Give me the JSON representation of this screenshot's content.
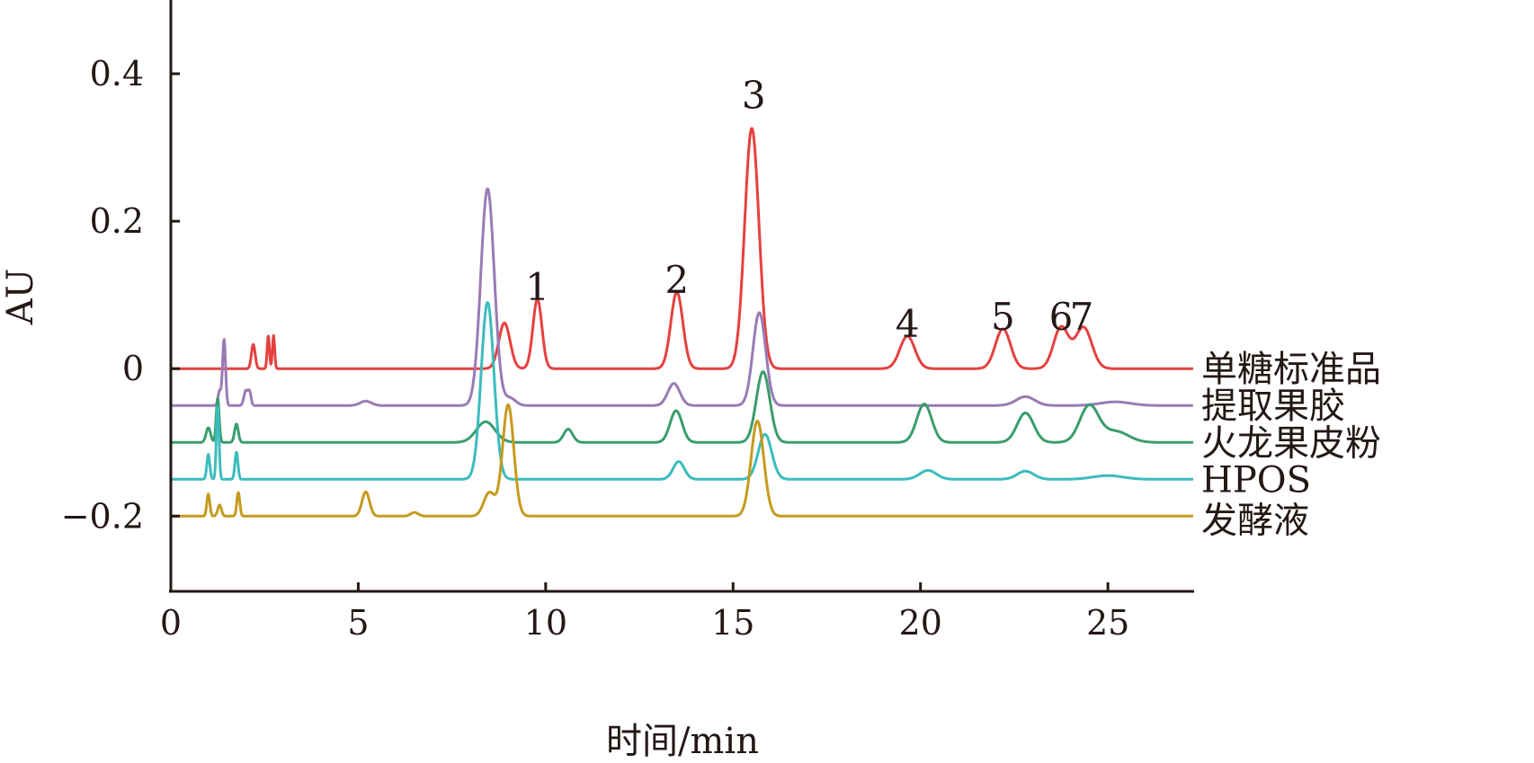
{
  "chart_data": {
    "type": "line",
    "title": "",
    "xlabel": "时间/min",
    "ylabel": "AU",
    "xlim": [
      0,
      27.3
    ],
    "ylim": [
      -0.302,
      0.5
    ],
    "xticks": [
      0,
      5,
      10,
      15,
      20,
      25
    ],
    "xtick_labels": [
      "0",
      "5",
      "10",
      "15",
      "20",
      "25"
    ],
    "yticks": [
      0.4,
      0.2,
      0,
      -0.2
    ],
    "ytick_labels": [
      "0.4",
      "0.2",
      "0",
      "−0.2"
    ],
    "grid": false,
    "legend_placement": "right, inline labels at trace ends",
    "series": [
      {
        "name": "单糖标准品",
        "color": "#e5413f",
        "baseline": 0,
        "peaks": [
          [
            2.2,
            0.033,
            0.05
          ],
          [
            2.6,
            0.045,
            0.03
          ],
          [
            2.74,
            0.045,
            0.03
          ],
          [
            8.9,
            0.062,
            0.15
          ],
          [
            9.78,
            0.094,
            0.12
          ],
          [
            13.5,
            0.104,
            0.16
          ],
          [
            15.5,
            0.326,
            0.19
          ],
          [
            19.65,
            0.044,
            0.2
          ],
          [
            22.2,
            0.054,
            0.2
          ],
          [
            23.75,
            0.056,
            0.2
          ],
          [
            24.35,
            0.056,
            0.22
          ]
        ]
      },
      {
        "name": "提取果胶",
        "color": "#9a7ab6",
        "baseline": -0.05,
        "peaks": [
          [
            1.3,
            0.02,
            0.04
          ],
          [
            1.42,
            0.09,
            0.04
          ],
          [
            2.0,
            0.02,
            0.05
          ],
          [
            2.1,
            0.018,
            0.04
          ],
          [
            5.2,
            0.006,
            0.15
          ],
          [
            8.45,
            0.294,
            0.18
          ],
          [
            9.05,
            0.01,
            0.15
          ],
          [
            13.42,
            0.03,
            0.16
          ],
          [
            15.7,
            0.126,
            0.17
          ],
          [
            22.8,
            0.012,
            0.25
          ],
          [
            25.2,
            0.005,
            0.4
          ]
        ]
      },
      {
        "name": "火龙果皮粉",
        "color": "#3a9d6c",
        "baseline": -0.1,
        "peaks": [
          [
            1.0,
            0.02,
            0.06
          ],
          [
            1.25,
            0.06,
            0.04
          ],
          [
            1.75,
            0.025,
            0.05
          ],
          [
            8.4,
            0.028,
            0.25
          ],
          [
            10.6,
            0.018,
            0.12
          ],
          [
            13.48,
            0.043,
            0.16
          ],
          [
            15.8,
            0.096,
            0.18
          ],
          [
            20.1,
            0.052,
            0.2
          ],
          [
            22.8,
            0.04,
            0.22
          ],
          [
            24.5,
            0.049,
            0.25
          ],
          [
            25.2,
            0.015,
            0.35
          ]
        ]
      },
      {
        "name": "HPOS",
        "color": "#3cbcbd",
        "baseline": -0.15,
        "peaks": [
          [
            1.0,
            0.034,
            0.04
          ],
          [
            1.25,
            0.1,
            0.035
          ],
          [
            1.75,
            0.037,
            0.04
          ],
          [
            8.45,
            0.24,
            0.17
          ],
          [
            13.55,
            0.024,
            0.15
          ],
          [
            15.85,
            0.061,
            0.18
          ],
          [
            20.2,
            0.012,
            0.22
          ],
          [
            22.8,
            0.011,
            0.22
          ],
          [
            25.0,
            0.005,
            0.4
          ]
        ]
      },
      {
        "name": "发酵液",
        "color": "#c69a1c",
        "baseline": -0.2,
        "peaks": [
          [
            1.0,
            0.03,
            0.04
          ],
          [
            1.3,
            0.015,
            0.05
          ],
          [
            1.8,
            0.032,
            0.04
          ],
          [
            5.2,
            0.033,
            0.1
          ],
          [
            6.5,
            0.005,
            0.1
          ],
          [
            8.5,
            0.032,
            0.15
          ],
          [
            9.0,
            0.151,
            0.15
          ],
          [
            15.65,
            0.129,
            0.17
          ]
        ]
      }
    ],
    "annotations": [
      {
        "text": "1",
        "t": 9.78,
        "au": 0.11
      },
      {
        "text": "2",
        "t": 13.5,
        "au": 0.12
      },
      {
        "text": "3",
        "t": 15.55,
        "au": 0.37
      },
      {
        "text": "4",
        "t": 19.65,
        "au": 0.06
      },
      {
        "text": "5",
        "t": 22.2,
        "au": 0.07
      },
      {
        "text": "6",
        "t": 23.75,
        "au": 0.07
      },
      {
        "text": "7",
        "t": 24.3,
        "au": 0.07
      }
    ]
  }
}
